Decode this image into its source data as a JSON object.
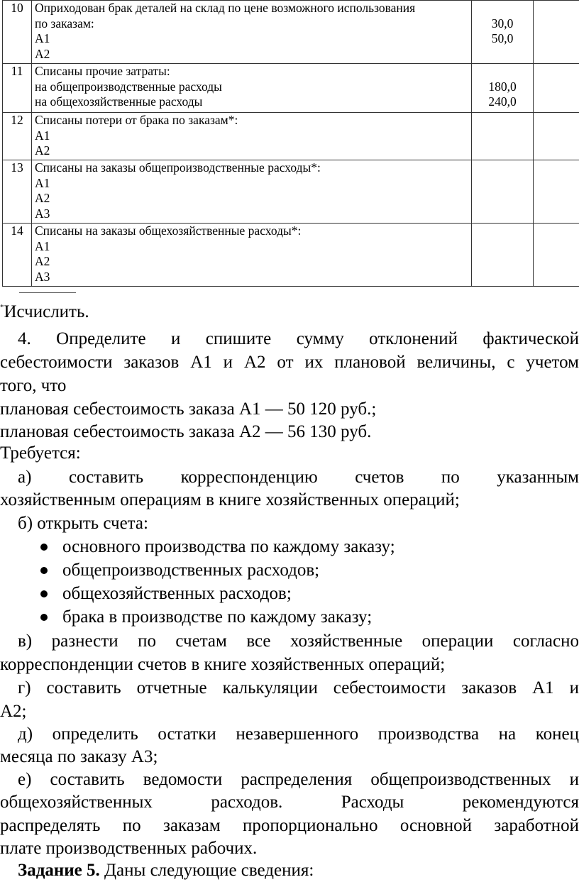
{
  "table": {
    "rows": [
      {
        "num": "10",
        "lines": [
          "Оприходован брак деталей на склад по цене возможного использования",
          "по заказам:",
          "А1",
          "А2"
        ],
        "amounts": [
          "",
          "30,0",
          "50,0",
          ""
        ]
      },
      {
        "num": "11",
        "lines": [
          "Списаны прочие затраты:",
          "на общепроизводственные расходы",
          "на общехозяйственные расходы"
        ],
        "amounts": [
          "",
          "180,0",
          "240,0"
        ]
      },
      {
        "num": "12",
        "lines": [
          "Списаны потери от брака по заказам*:",
          "А1",
          "А2"
        ],
        "amounts": [
          "",
          "",
          ""
        ]
      },
      {
        "num": "13",
        "lines": [
          "Списаны на заказы общепроизводственные расходы*:",
          "А1",
          "А2",
          "А3"
        ],
        "amounts": [
          "",
          "",
          "",
          ""
        ]
      },
      {
        "num": "14",
        "lines": [
          "Списаны на заказы общехозяйственные расходы*:",
          "А1",
          "А2",
          "А3"
        ],
        "amounts": [
          "",
          "",
          "",
          ""
        ]
      }
    ]
  },
  "footnote": {
    "mark": "*",
    "text": "Исчислить."
  },
  "task4": {
    "p1": [
      "4. Определите и спишите сумму отклонений фактической",
      "себестоимости заказов А1 и А2 от их плановой величины, с учетом",
      "того, что"
    ],
    "plan_a1": "плановая себестоимость заказа А1 — 50 120 руб.;",
    "plan_a2": "плановая себестоимость заказа А2 — 56 130 руб.",
    "required": "Требуется:",
    "a": [
      "а) составить корреспонденцию счетов по указанным",
      "хозяйственным операциям в книге хозяйственных операций;"
    ],
    "b": "б) открыть счета:",
    "bullets": [
      "основного производства по каждому заказу;",
      "общепроизводственных расходов;",
      "общехозяйственных расходов;",
      "брака в производстве по каждому заказу;"
    ],
    "v": [
      "в) разнести по счетам все хозяйственные операции согласно",
      "корреспонденции счетов в книге хозяйственных операций;"
    ],
    "g": [
      "г) составить отчетные калькуляции себестоимости заказов А1 и",
      "А2;"
    ],
    "d": [
      "д) определить остатки незавершенного производства на конец",
      "месяца по заказу А3;"
    ],
    "e": [
      "е) составить ведомости распределения общепроизводственных и",
      "общехозяйственных расходов. Расходы рекомендуются",
      "распределять по заказам пропорционально основной заработной",
      "плате производственных рабочих."
    ]
  },
  "task5": {
    "label": "Задание 5.",
    "text": " Даны следующие сведения:"
  }
}
